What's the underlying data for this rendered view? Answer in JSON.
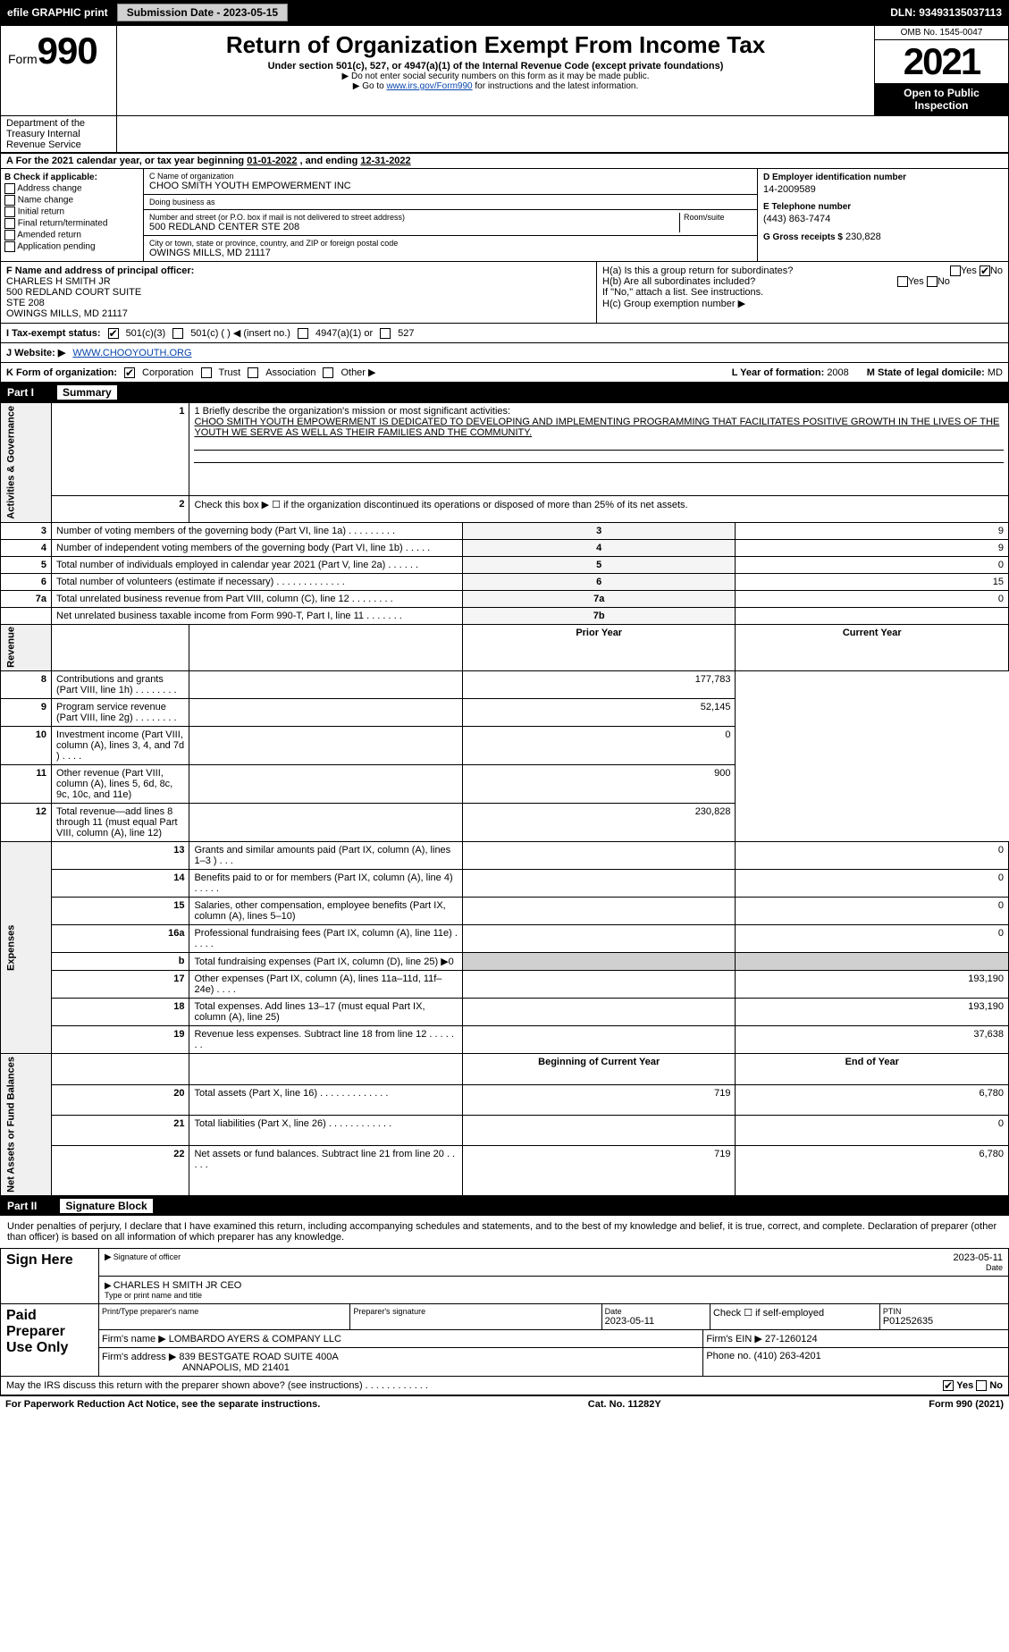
{
  "topbar": {
    "efile_label": "efile GRAPHIC print",
    "submission_label": "Submission Date - 2023-05-15",
    "dln_label": "DLN: 93493135037113"
  },
  "header": {
    "form_prefix": "Form",
    "form_number": "990",
    "title": "Return of Organization Exempt From Income Tax",
    "subtitle": "Under section 501(c), 527, or 4947(a)(1) of the Internal Revenue Code (except private foundations)",
    "note1": "▶ Do not enter social security numbers on this form as it may be made public.",
    "note2_pre": "▶ Go to ",
    "note2_link": "www.irs.gov/Form990",
    "note2_post": " for instructions and the latest information.",
    "omb": "OMB No. 1545-0047",
    "year": "2021",
    "open_public": "Open to Public Inspection",
    "dept": "Department of the Treasury Internal Revenue Service"
  },
  "period": {
    "a_label": "A For the 2021 calendar year, or tax year beginning ",
    "begin": "01-01-2022",
    "mid": " , and ending ",
    "end": "12-31-2022"
  },
  "colB": {
    "head": "B Check if applicable:",
    "opts": [
      "Address change",
      "Name change",
      "Initial return",
      "Final return/terminated",
      "Amended return",
      "Application pending"
    ]
  },
  "colC": {
    "name_lbl": "C Name of organization",
    "name": "CHOO SMITH YOUTH EMPOWERMENT INC",
    "dba_lbl": "Doing business as",
    "dba": "",
    "street_lbl": "Number and street (or P.O. box if mail is not delivered to street address)",
    "room_lbl": "Room/suite",
    "street": "500 REDLAND CENTER STE 208",
    "city_lbl": "City or town, state or province, country, and ZIP or foreign postal code",
    "city": "OWINGS MILLS, MD  21117"
  },
  "colD": {
    "ein_lbl": "D Employer identification number",
    "ein": "14-2009589",
    "phone_lbl": "E Telephone number",
    "phone": "(443) 863-7474",
    "gross_lbl": "G Gross receipts $",
    "gross": "230,828"
  },
  "officer": {
    "lbl": "F  Name and address of principal officer:",
    "name": "CHARLES H SMITH JR",
    "addr1": "500 REDLAND COURT SUITE",
    "addr2": "STE 208",
    "addr3": "OWINGS MILLS, MD  21117"
  },
  "h": {
    "ha_lbl": "H(a)  Is this a group return for subordinates?",
    "ha_yes": "Yes",
    "ha_no": "No",
    "hb_lbl": "H(b)  Are all subordinates included?",
    "hb_note": "If \"No,\" attach a list. See instructions.",
    "hc_lbl": "H(c)  Group exemption number ▶"
  },
  "tax_status": {
    "i_lbl": "I  Tax-exempt status:",
    "opt1": "501(c)(3)",
    "opt2": "501(c) (   ) ◀ (insert no.)",
    "opt3": "4947(a)(1) or",
    "opt4": "527"
  },
  "website": {
    "j_lbl": "J Website: ▶",
    "url": "WWW.CHOOYOUTH.ORG"
  },
  "kform": {
    "k_lbl": "K Form of organization:",
    "o1": "Corporation",
    "o2": "Trust",
    "o3": "Association",
    "o4": "Other ▶",
    "l_lbl": "L Year of formation:",
    "l_val": "2008",
    "m_lbl": "M State of legal domicile:",
    "m_val": "MD"
  },
  "part1": {
    "label": "Part I",
    "title": "Summary"
  },
  "mission": {
    "line1_lbl": "1  Briefly describe the organization's mission or most significant activities:",
    "text": "CHOO SMITH YOUTH EMPOWERMENT IS DEDICATED TO DEVELOPING AND IMPLEMENTING PROGRAMMING THAT FACILITATES POSITIVE GROWTH IN THE LIVES OF THE YOUTH WE SERVE AS WELL AS THEIR FAMILIES AND THE COMMUNITY."
  },
  "gov": {
    "line2": "Check this box ▶ ☐  if the organization discontinued its operations or disposed of more than 25% of its net assets.",
    "rows": [
      {
        "n": "3",
        "d": "Number of voting members of the governing body (Part VI, line 1a)  .  .  .  .  .  .  .  .  .",
        "box": "3",
        "v": "9"
      },
      {
        "n": "4",
        "d": "Number of independent voting members of the governing body (Part VI, line 1b)  .  .  .  .  .",
        "box": "4",
        "v": "9"
      },
      {
        "n": "5",
        "d": "Total number of individuals employed in calendar year 2021 (Part V, line 2a)  .  .  .  .  .  .",
        "box": "5",
        "v": "0"
      },
      {
        "n": "6",
        "d": "Total number of volunteers (estimate if necessary)   .  .  .  .  .  .  .  .  .  .  .  .  .",
        "box": "6",
        "v": "15"
      },
      {
        "n": "7a",
        "d": "Total unrelated business revenue from Part VIII, column (C), line 12  .  .  .  .  .  .  .  .",
        "box": "7a",
        "v": "0"
      },
      {
        "n": "",
        "d": "Net unrelated business taxable income from Form 990-T, Part I, line 11  .  .  .  .  .  .  .",
        "box": "7b",
        "v": ""
      }
    ]
  },
  "revexp": {
    "prior_hdr": "Prior Year",
    "curr_hdr": "Current Year",
    "sections": [
      {
        "side": "Revenue",
        "rows": [
          {
            "n": "8",
            "d": "Contributions and grants (Part VIII, line 1h)   .  .  .  .  .  .  .  .",
            "p": "",
            "c": "177,783"
          },
          {
            "n": "9",
            "d": "Program service revenue (Part VIII, line 2g)  .  .  .  .  .  .  .  .",
            "p": "",
            "c": "52,145"
          },
          {
            "n": "10",
            "d": "Investment income (Part VIII, column (A), lines 3, 4, and 7d )  .  .  .  .",
            "p": "",
            "c": "0"
          },
          {
            "n": "11",
            "d": "Other revenue (Part VIII, column (A), lines 5, 6d, 8c, 9c, 10c, and 11e)",
            "p": "",
            "c": "900"
          },
          {
            "n": "12",
            "d": "Total revenue—add lines 8 through 11 (must equal Part VIII, column (A), line 12)",
            "p": "",
            "c": "230,828"
          }
        ]
      },
      {
        "side": "Expenses",
        "rows": [
          {
            "n": "13",
            "d": "Grants and similar amounts paid (Part IX, column (A), lines 1–3 )  .  .  .",
            "p": "",
            "c": "0"
          },
          {
            "n": "14",
            "d": "Benefits paid to or for members (Part IX, column (A), line 4)  .  .  .  .  .",
            "p": "",
            "c": "0"
          },
          {
            "n": "15",
            "d": "Salaries, other compensation, employee benefits (Part IX, column (A), lines 5–10)",
            "p": "",
            "c": "0"
          },
          {
            "n": "16a",
            "d": "Professional fundraising fees (Part IX, column (A), line 11e)  .  .  .  .  .",
            "p": "",
            "c": "0"
          },
          {
            "n": "b",
            "d": "Total fundraising expenses (Part IX, column (D), line 25) ▶0",
            "p": "—shade—",
            "c": "—shade—"
          },
          {
            "n": "17",
            "d": "Other expenses (Part IX, column (A), lines 11a–11d, 11f–24e)  .  .  .  .",
            "p": "",
            "c": "193,190"
          },
          {
            "n": "18",
            "d": "Total expenses. Add lines 13–17 (must equal Part IX, column (A), line 25)",
            "p": "",
            "c": "193,190"
          },
          {
            "n": "19",
            "d": "Revenue less expenses. Subtract line 18 from line 12  .  .  .  .  .  .  .",
            "p": "",
            "c": "37,638"
          }
        ]
      },
      {
        "side": "Net Assets or Fund Balances",
        "rows": [
          {
            "n": "",
            "d": "",
            "p": "Beginning of Current Year",
            "c": "End of Year",
            "hdr": true
          },
          {
            "n": "20",
            "d": "Total assets (Part X, line 16)  .  .  .  .  .  .  .  .  .  .  .  .  .",
            "p": "719",
            "c": "6,780"
          },
          {
            "n": "21",
            "d": "Total liabilities (Part X, line 26)  .  .  .  .  .  .  .  .  .  .  .  .",
            "p": "",
            "c": "0"
          },
          {
            "n": "22",
            "d": "Net assets or fund balances. Subtract line 21 from line 20  .  .  .  .  .",
            "p": "719",
            "c": "6,780"
          }
        ]
      }
    ]
  },
  "part2": {
    "label": "Part II",
    "title": "Signature Block"
  },
  "sig": {
    "declaration": "Under penalties of perjury, I declare that I have examined this return, including accompanying schedules and statements, and to the best of my knowledge and belief, it is true, correct, and complete. Declaration of preparer (other than officer) is based on all information of which preparer has any knowledge.",
    "sign_here": "Sign Here",
    "sig_of_officer": "Signature of officer",
    "date_lbl": "Date",
    "sig_date": "2023-05-11",
    "typed_name": "CHARLES H SMITH JR  CEO",
    "typed_lbl": "Type or print name and title",
    "paid_prep": "Paid Preparer Use Only",
    "prep_name_lbl": "Print/Type preparer's name",
    "prep_name": "",
    "prep_sig_lbl": "Preparer's signature",
    "prep_date_lbl": "Date",
    "prep_date": "2023-05-11",
    "self_emp": "Check ☐ if self-employed",
    "ptin_lbl": "PTIN",
    "ptin": "P01252635",
    "firm_name_lbl": "Firm's name      ▶",
    "firm_name": "LOMBARDO AYERS & COMPANY LLC",
    "firm_ein_lbl": "Firm's EIN ▶",
    "firm_ein": "27-1260124",
    "firm_addr_lbl": "Firm's address ▶",
    "firm_addr": "839 BESTGATE ROAD SUITE 400A",
    "firm_city": "ANNAPOLIS, MD  21401",
    "firm_phone_lbl": "Phone no.",
    "firm_phone": "(410) 263-4201",
    "discuss": "May the IRS discuss this return with the preparer shown above? (see instructions)   .  .  .  .  .  .  .  .  .  .  .  .",
    "discuss_yes": "Yes",
    "discuss_no": "No"
  },
  "footer": {
    "left": "For Paperwork Reduction Act Notice, see the separate instructions.",
    "mid": "Cat. No. 11282Y",
    "right": "Form 990 (2021)"
  },
  "side_labels": {
    "gov": "Activities & Governance"
  }
}
